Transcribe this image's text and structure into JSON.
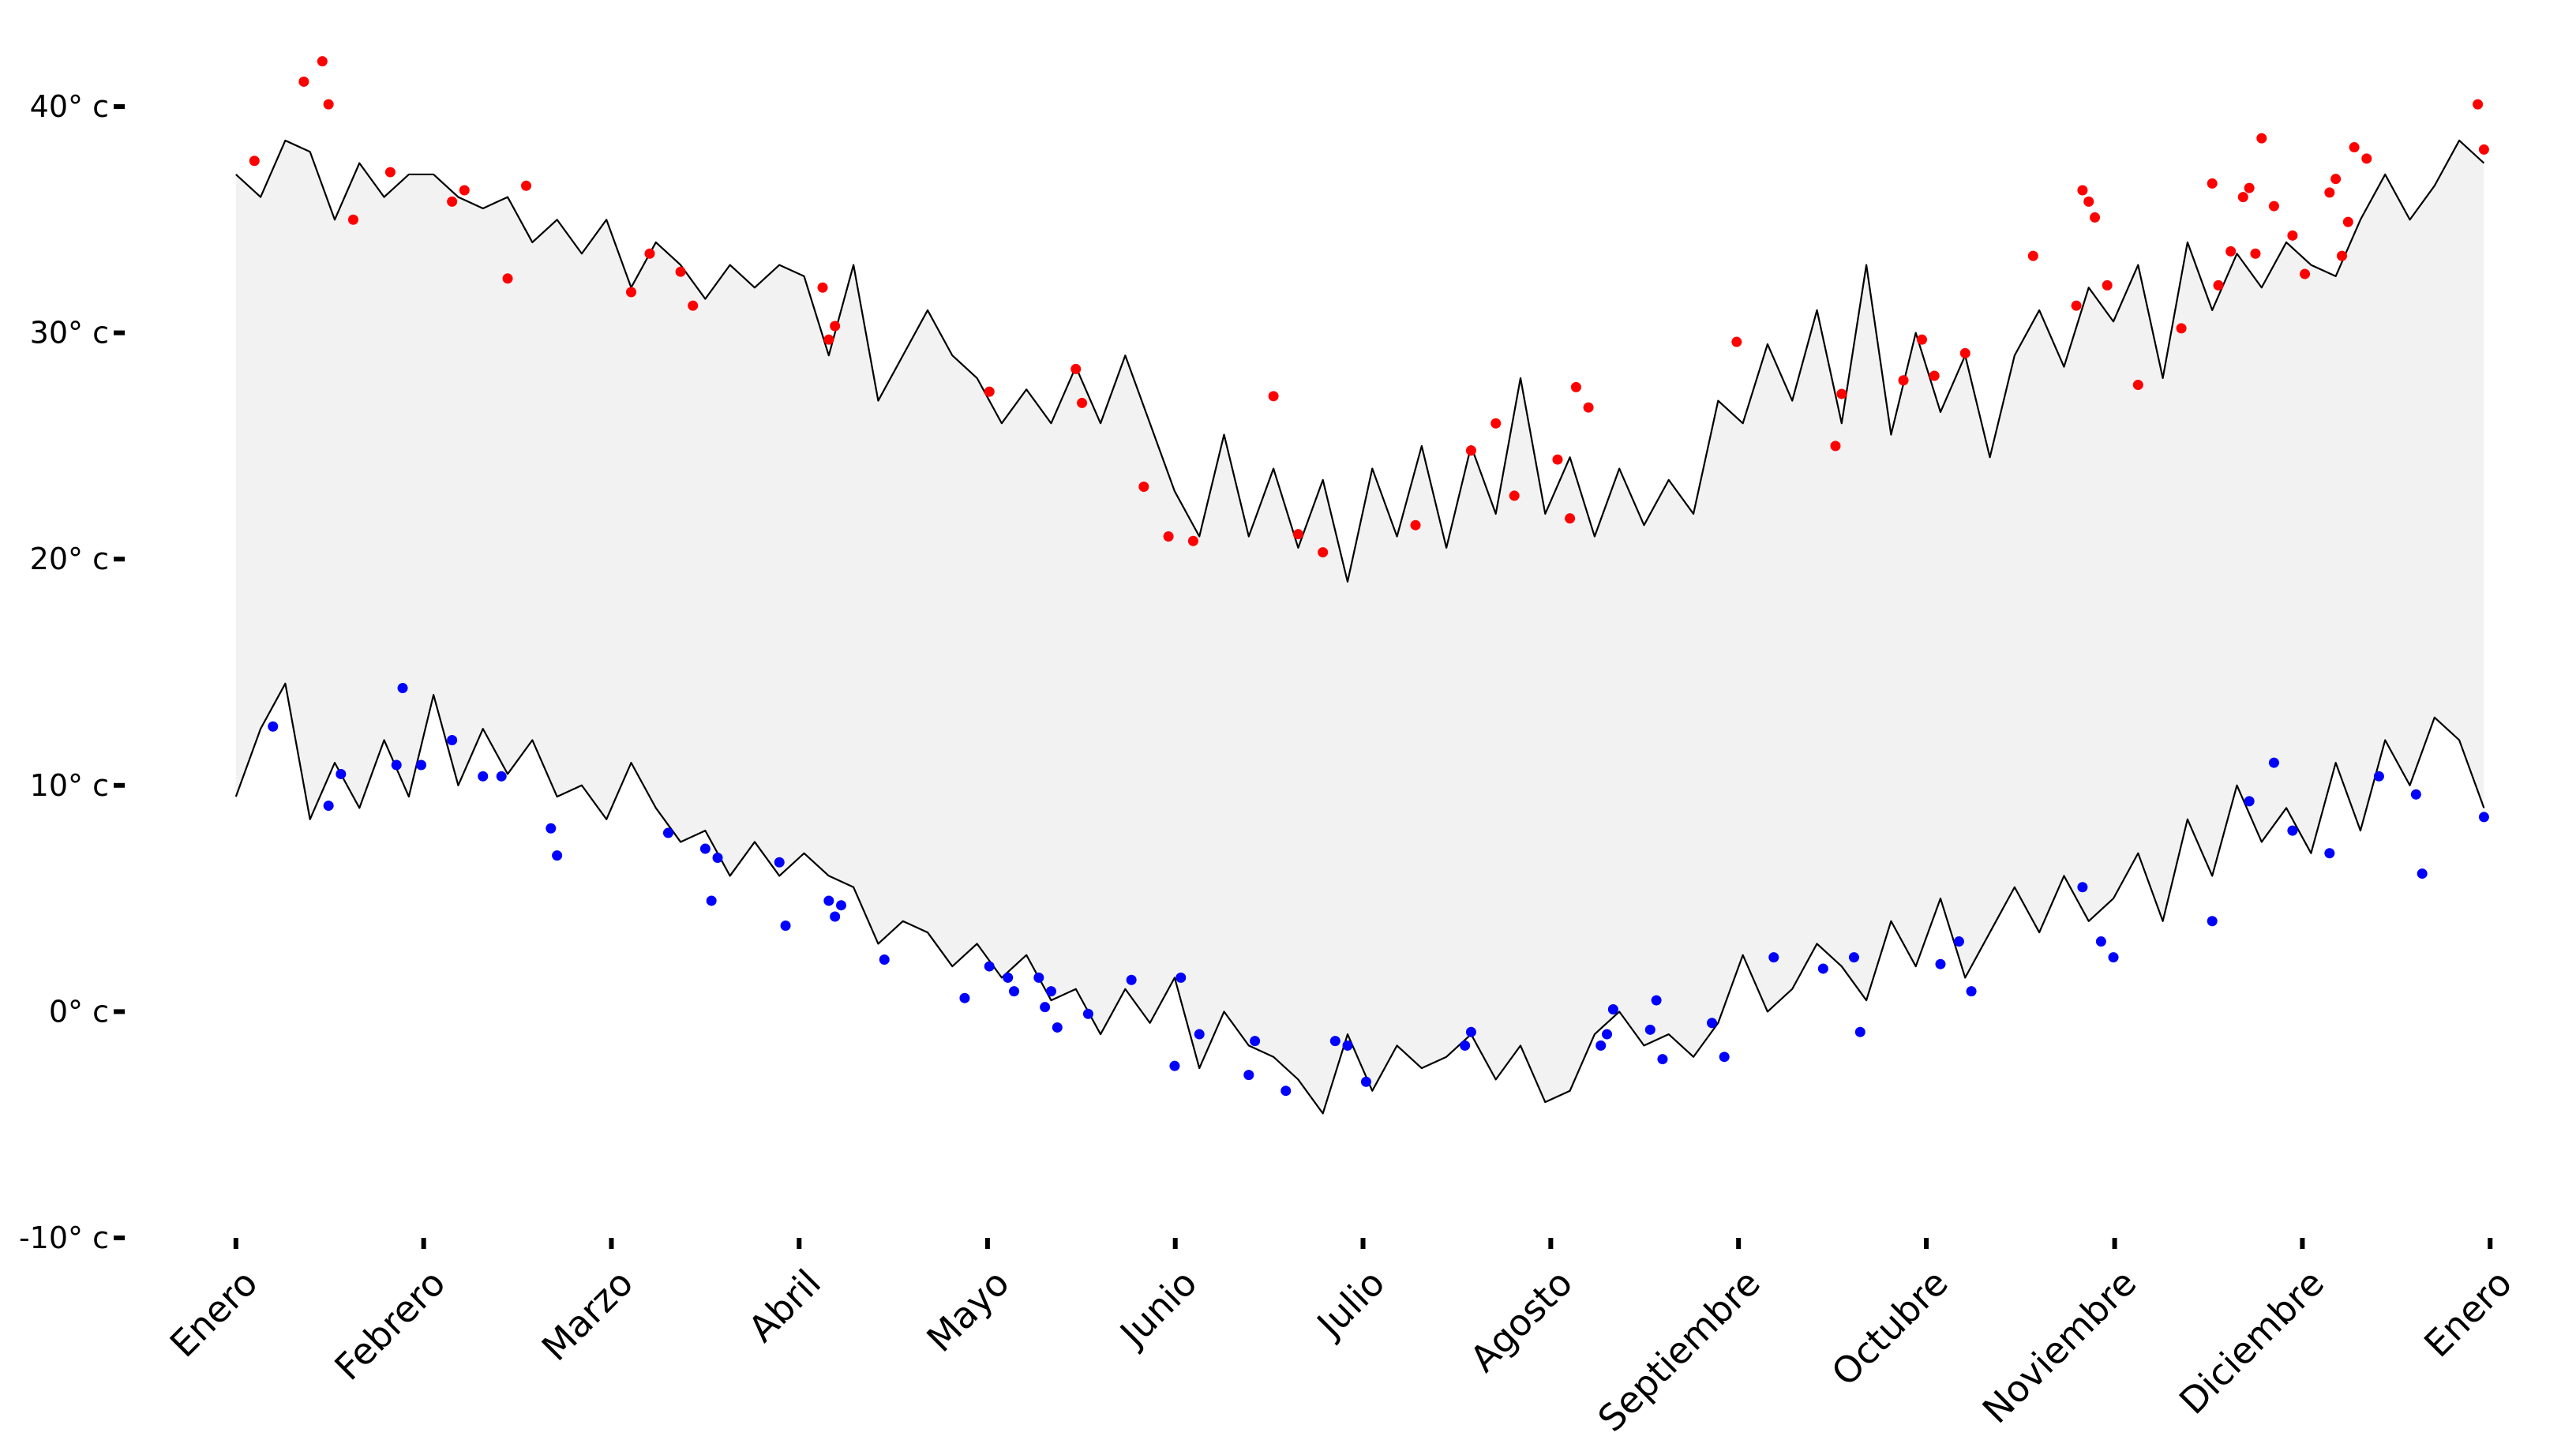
{
  "chart_data": {
    "type": "line",
    "x": [
      0,
      4,
      8,
      12,
      16,
      20,
      24,
      28,
      32,
      36,
      40,
      44,
      48,
      52,
      56,
      60,
      64,
      68,
      72,
      76,
      80,
      84,
      88,
      92,
      96,
      100,
      104,
      108,
      112,
      116,
      120,
      124,
      128,
      132,
      136,
      140,
      144,
      148,
      152,
      156,
      160,
      164,
      168,
      172,
      176,
      180,
      184,
      188,
      192,
      196,
      200,
      204,
      208,
      212,
      216,
      220,
      224,
      228,
      232,
      236,
      240,
      244,
      248,
      252,
      256,
      260,
      264,
      268,
      272,
      276,
      280,
      284,
      288,
      292,
      296,
      300,
      304,
      308,
      312,
      316,
      320,
      324,
      328,
      332,
      336,
      340,
      344,
      348,
      352,
      356,
      360,
      364
    ],
    "series": [
      {
        "color": "#000000",
        "values": [
          37,
          36,
          38.5,
          38,
          35,
          37.5,
          36,
          37,
          37,
          36,
          35.5,
          36,
          34,
          35,
          33.5,
          35,
          32,
          34,
          33,
          31.5,
          33,
          32,
          33,
          32.5,
          29,
          33,
          27,
          29,
          31,
          29,
          28,
          26,
          27.5,
          26,
          28.5,
          26,
          29,
          26,
          23,
          21,
          25.5,
          21,
          24,
          20.5,
          23.5,
          19,
          24,
          21,
          25,
          20.5,
          25,
          22,
          28,
          22,
          24.5,
          21,
          24,
          21.5,
          23.5,
          22,
          27,
          26,
          29.5,
          27,
          31,
          26,
          33,
          25.5,
          30,
          26.5,
          29,
          24.5,
          29,
          31,
          28.5,
          32,
          30.5,
          33,
          28,
          34,
          31,
          33.5,
          32,
          34,
          33,
          32.5,
          35,
          37,
          35,
          36.5,
          38.5,
          37.5
        ]
      },
      {
        "color": "#000000",
        "values": [
          9.5,
          12.5,
          14.5,
          8.5,
          11,
          9,
          12,
          9.5,
          14,
          10,
          12.5,
          10.5,
          12,
          9.5,
          10,
          8.5,
          11,
          9,
          7.5,
          8,
          6,
          7.5,
          6,
          7,
          6,
          5.5,
          3,
          4,
          3.5,
          2,
          3,
          1.5,
          2.5,
          0.5,
          1,
          -1,
          1,
          -0.5,
          1.5,
          -2.5,
          0,
          -1.5,
          -2,
          -3,
          -4.5,
          -1,
          -3.5,
          -1.5,
          -2.5,
          -2,
          -1,
          -3,
          -1.5,
          -4,
          -3.5,
          -1,
          0,
          -1.5,
          -1,
          -2,
          -0.5,
          2.5,
          0,
          1,
          3,
          2,
          0.5,
          4,
          2,
          5,
          1.5,
          3.5,
          5.5,
          3.5,
          6,
          4,
          5,
          7,
          4,
          8.5,
          6,
          10,
          7.5,
          9,
          7,
          11,
          8,
          12,
          10,
          13,
          12,
          9
        ]
      }
    ],
    "fill_color": "#f2f2f2",
    "points": [
      {
        "color": "#ff0000",
        "x": [
          3,
          11,
          14,
          15,
          19,
          25,
          35,
          37,
          44,
          47,
          64,
          67,
          72,
          74,
          95,
          96,
          97,
          122,
          136,
          137,
          147,
          151,
          155,
          168,
          172,
          176,
          191,
          200,
          204,
          207,
          214,
          216,
          217,
          219,
          243,
          259,
          260,
          270,
          273,
          275,
          280,
          291,
          298,
          299,
          300,
          301,
          303,
          308,
          315,
          320,
          321,
          323,
          325,
          326,
          327,
          328,
          330,
          333,
          335,
          339,
          340,
          341,
          342,
          343,
          345,
          363,
          364
        ],
        "values": [
          37.6,
          41.1,
          42,
          40.1,
          35,
          37.1,
          35.8,
          36.3,
          32.4,
          36.5,
          31.8,
          33.5,
          32.7,
          31.2,
          32,
          29.7,
          30.3,
          27.4,
          28.4,
          26.9,
          23.2,
          21,
          20.8,
          27.2,
          21.1,
          20.3,
          21.5,
          24.8,
          26,
          22.8,
          24.4,
          21.8,
          27.6,
          26.7,
          29.6,
          25,
          27.3,
          27.9,
          29.7,
          28.1,
          29.1,
          33.4,
          31.2,
          36.3,
          35.8,
          35.1,
          32.1,
          27.7,
          30.2,
          36.6,
          32.1,
          33.6,
          36,
          36.4,
          33.5,
          38.6,
          35.6,
          34.3,
          32.6,
          36.2,
          36.8,
          33.4,
          34.9,
          38.2,
          37.7,
          40.1,
          38.1
        ]
      },
      {
        "color": "#0000ff",
        "x": [
          6,
          15,
          17,
          26,
          27,
          30,
          35,
          40,
          43,
          51,
          52,
          70,
          76,
          77,
          78,
          88,
          89,
          96,
          97,
          98,
          105,
          118,
          122,
          125,
          126,
          130,
          131,
          132,
          133,
          138,
          145,
          152,
          153,
          156,
          164,
          165,
          170,
          178,
          180,
          183,
          199,
          200,
          221,
          222,
          223,
          229,
          230,
          231,
          239,
          241,
          249,
          257,
          262,
          263,
          276,
          279,
          281,
          299,
          302,
          304,
          320,
          326,
          330,
          333,
          339,
          347,
          353,
          354,
          364
        ],
        "values": [
          12.6,
          9.1,
          10.5,
          10.9,
          14.3,
          10.9,
          12,
          10.4,
          10.4,
          8.1,
          6.9,
          7.9,
          7.2,
          4.9,
          6.8,
          6.6,
          3.8,
          4.9,
          4.2,
          4.7,
          2.3,
          0.6,
          2,
          1.5,
          0.9,
          1.5,
          0.2,
          0.9,
          -0.7,
          -0.1,
          1.4,
          -2.4,
          1.5,
          -1,
          -2.8,
          -1.3,
          -3.5,
          -1.3,
          -1.5,
          -3.1,
          -1.5,
          -0.9,
          -1.5,
          -1,
          0.1,
          -0.8,
          0.5,
          -2.1,
          -0.5,
          -2,
          2.4,
          1.9,
          2.4,
          -0.9,
          2.1,
          3.1,
          0.9,
          5.5,
          3.1,
          2.4,
          4,
          9.3,
          11,
          8,
          7,
          10.4,
          9.6,
          6.1,
          8.6
        ]
      }
    ],
    "xlim": [
      -18,
      372
    ],
    "ylim": [
      -10,
      44.5
    ],
    "xticks": [
      {
        "value": 0,
        "label": "Enero"
      },
      {
        "value": 30.4,
        "label": "Febrero"
      },
      {
        "value": 60.8,
        "label": "Marzo"
      },
      {
        "value": 91.2,
        "label": "Abril"
      },
      {
        "value": 121.7,
        "label": "Mayo"
      },
      {
        "value": 152.1,
        "label": "Junio"
      },
      {
        "value": 182.5,
        "label": "Julio"
      },
      {
        "value": 212.9,
        "label": "Agosto"
      },
      {
        "value": 243.3,
        "label": "Septiembre"
      },
      {
        "value": 273.7,
        "label": "Octubre"
      },
      {
        "value": 304.2,
        "label": "Noviembre"
      },
      {
        "value": 334.6,
        "label": "Diciembre"
      },
      {
        "value": 365,
        "label": "Enero"
      }
    ],
    "yticks": [
      {
        "value": -10,
        "label": "-10° c"
      },
      {
        "value": 0,
        "label": "0° c"
      },
      {
        "value": 10,
        "label": "10° c"
      },
      {
        "value": 20,
        "label": "20° c"
      },
      {
        "value": 30,
        "label": "30° c"
      },
      {
        "value": 40,
        "label": "40° c"
      }
    ]
  }
}
